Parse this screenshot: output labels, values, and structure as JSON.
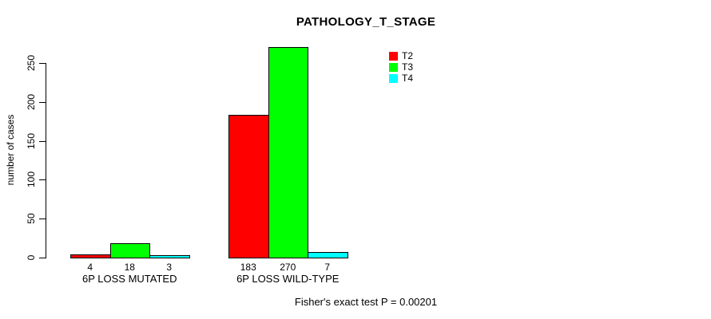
{
  "chart_data": {
    "type": "bar",
    "title": "PATHOLOGY_T_STAGE",
    "ylabel": "number of cases",
    "xlabel": "",
    "categories": [
      "6P LOSS MUTATED",
      "6P LOSS WILD-TYPE"
    ],
    "series": [
      {
        "name": "T2",
        "color": "#FF0000",
        "values": [
          4,
          183
        ]
      },
      {
        "name": "T3",
        "color": "#00FF00",
        "values": [
          18,
          270
        ]
      },
      {
        "name": "T4",
        "color": "#00FFFF",
        "values": [
          3,
          7
        ]
      }
    ],
    "yticks": [
      0,
      50,
      100,
      150,
      200,
      250
    ],
    "ylim": [
      0,
      270
    ],
    "grid": false,
    "legend_position": "top-right-inside",
    "bar_value_labels": [
      [
        4,
        18,
        3
      ],
      [
        183,
        270,
        7
      ]
    ],
    "footnote": "Fisher's exact test P = 0.00201",
    "axis_color": "#000000",
    "background_color": "#FFFFFF"
  }
}
